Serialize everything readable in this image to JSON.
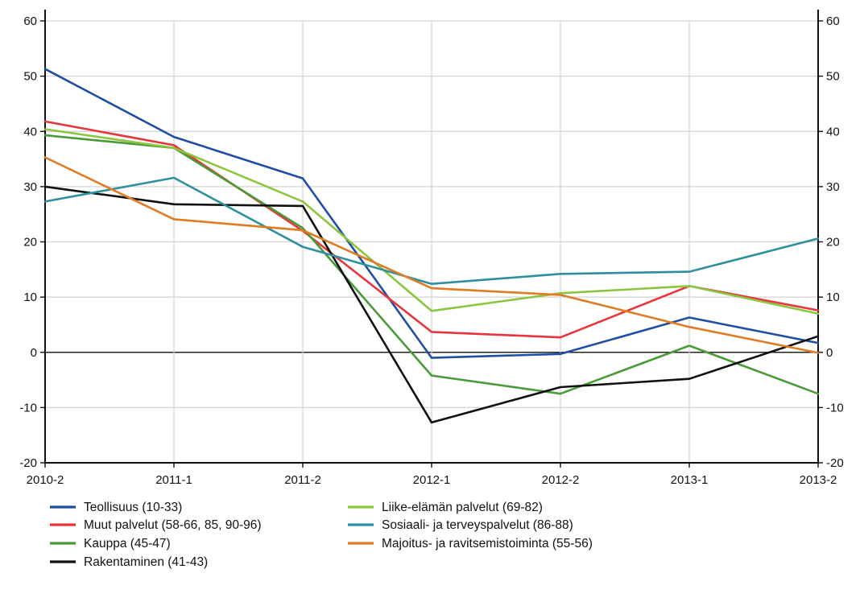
{
  "chart_data": {
    "type": "line",
    "categories": [
      "2010-2",
      "2011-1",
      "2011-2",
      "2012-1",
      "2012-2",
      "2013-1",
      "2013-2"
    ],
    "ylim": [
      -20,
      60
    ],
    "yticks": [
      60,
      50,
      40,
      30,
      20,
      10,
      0,
      -10,
      -20
    ],
    "grid": true,
    "legend_position": "bottom",
    "series": [
      {
        "name": "Teollisuus (10-33)",
        "color": "#1f4ea3",
        "values": [
          51.3,
          39.0,
          31.5,
          -1.0,
          -0.3,
          6.3,
          1.7
        ]
      },
      {
        "name": "Muut palvelut (58-66, 85, 90-96)",
        "color": "#e8353b",
        "values": [
          41.8,
          37.5,
          22.0,
          3.7,
          2.7,
          12.0,
          7.6
        ]
      },
      {
        "name": "Kauppa (45-47)",
        "color": "#4a9a3a",
        "values": [
          39.3,
          37.0,
          22.5,
          -4.2,
          -7.5,
          1.2,
          -7.5
        ]
      },
      {
        "name": "Rakentaminen (41-43)",
        "color": "#111111",
        "values": [
          30.0,
          26.8,
          26.5,
          -12.7,
          -6.3,
          -4.8,
          2.9
        ]
      },
      {
        "name": "Liike-elämän palvelut (69-82)",
        "color": "#8cc63f",
        "values": [
          40.4,
          37.0,
          27.3,
          7.5,
          10.7,
          12.0,
          7.0
        ]
      },
      {
        "name": "Sosiaali- ja terveyspalvelut (86-88)",
        "color": "#2e8f9e",
        "values": [
          27.3,
          31.6,
          19.1,
          12.4,
          14.2,
          14.6,
          20.6
        ]
      },
      {
        "name": "Majoitus- ja ravitsemistoiminta (55-56)",
        "color": "#e07b23",
        "values": [
          35.3,
          24.1,
          22.1,
          11.6,
          10.4,
          4.6,
          -0.1
        ]
      }
    ]
  }
}
